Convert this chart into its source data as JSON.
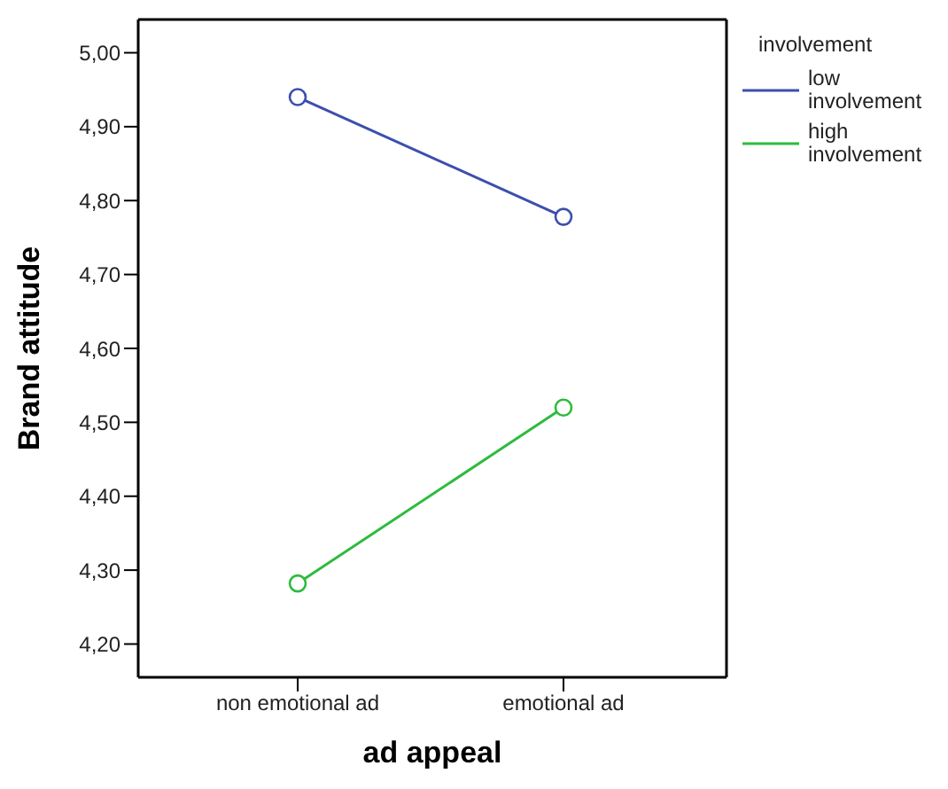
{
  "chart_data": {
    "type": "line",
    "xlabel": "ad appeal",
    "ylabel": "Brand attitude",
    "legend_title": "involvement",
    "categories": [
      "non emotional ad",
      "emotional ad"
    ],
    "series": [
      {
        "name": "low involvement",
        "color": "#3c4fad",
        "values": [
          4.94,
          4.778
        ]
      },
      {
        "name": "high involvement",
        "color": "#2dbb3c",
        "values": [
          4.282,
          4.52
        ]
      }
    ],
    "ylim": [
      4.155,
      5.045
    ],
    "yticks": [
      {
        "value": 4.2,
        "label": "4,20"
      },
      {
        "value": 4.3,
        "label": "4,30"
      },
      {
        "value": 4.4,
        "label": "4,40"
      },
      {
        "value": 4.5,
        "label": "4,50"
      },
      {
        "value": 4.6,
        "label": "4,60"
      },
      {
        "value": 4.7,
        "label": "4,70"
      },
      {
        "value": 4.8,
        "label": "4,80"
      },
      {
        "value": 4.9,
        "label": "4,90"
      },
      {
        "value": 5.0,
        "label": "5,00"
      }
    ],
    "marker": "circle",
    "line_style": "solid",
    "grid": false,
    "legend": "top right"
  }
}
